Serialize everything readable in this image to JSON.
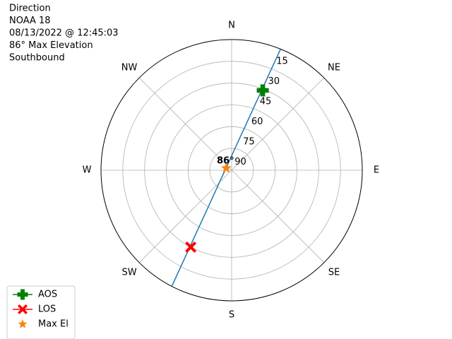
{
  "chart_data": {
    "type": "polar",
    "title_lines": [
      "Direction",
      "NOAA 18",
      "08/13/2022 @ 12:45:03",
      "86° Max Elevation",
      "Southbound"
    ],
    "theta_direction": "clockwise",
    "theta_zero": "N",
    "theta_ticks": [
      {
        "value": 0,
        "label": "N"
      },
      {
        "value": 45,
        "label": "NE"
      },
      {
        "value": 90,
        "label": "E"
      },
      {
        "value": 135,
        "label": "SE"
      },
      {
        "value": 180,
        "label": "S"
      },
      {
        "value": 225,
        "label": "SW"
      },
      {
        "value": 270,
        "label": "W"
      },
      {
        "value": 315,
        "label": "NW"
      }
    ],
    "rlim": [
      90,
      0
    ],
    "rticks": [
      15,
      30,
      45,
      60,
      75,
      90
    ],
    "rlabel_angle": 22.5,
    "grid": true,
    "series": [
      {
        "color": "#1f77b4",
        "marker": "none",
        "line": true,
        "x": [
          22.0,
          21.3,
          20.2,
          18.0,
          11.4,
          359.1,
          290.6,
          228.7,
          217.4,
          211.1,
          209.0,
          207.9,
          207.3
        ],
        "values": [
          0.3,
          18.2,
          36.2,
          54.1,
          71.8,
          80.4,
          85.9,
          79.8,
          71.3,
          53.5,
          35.6,
          17.7,
          0
        ]
      },
      {
        "name": "AOS",
        "color": "#008000",
        "marker": "plus",
        "line": true,
        "x": [
          21.3
        ],
        "values": [
          31
        ]
      },
      {
        "name": "LOS",
        "color": "#ff0000",
        "marker": "x",
        "line": true,
        "x": [
          208.0
        ],
        "values": [
          30
        ]
      },
      {
        "name": "Max El",
        "color": "#ff7f0e",
        "marker": "star",
        "line": false,
        "x": [
          290.6
        ],
        "values": [
          86
        ]
      }
    ],
    "annotations": [
      {
        "text": "86°",
        "x": 290.6,
        "y": 86
      }
    ],
    "legend": "lower left"
  }
}
